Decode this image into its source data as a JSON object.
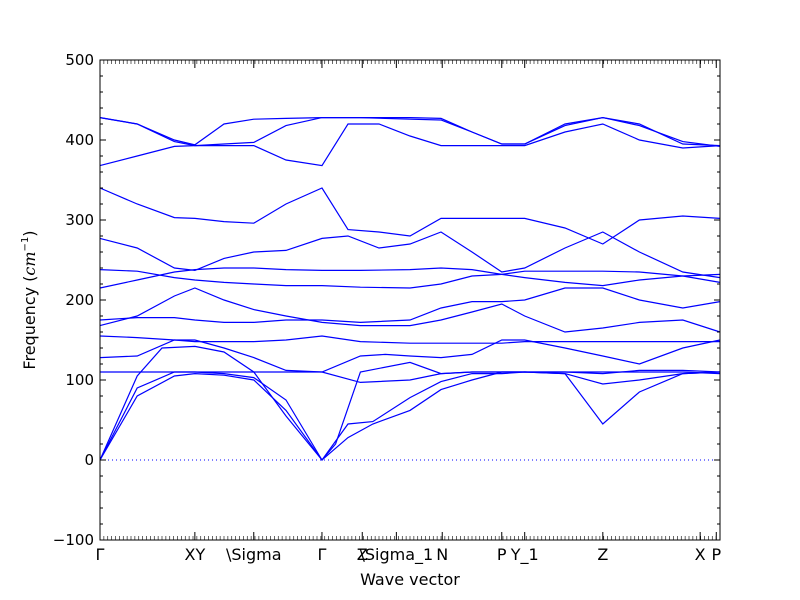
{
  "chart_data": {
    "type": "line",
    "xlabel": "Wave vector",
    "ylabel_text": "Frequency (",
    "ylabel_unit": "cm",
    "ylabel_exp": "−1",
    "ylabel_close": ")",
    "ylim": [
      -100,
      500
    ],
    "xlim": [
      0,
      1
    ],
    "yticks": [
      -100,
      0,
      100,
      200,
      300,
      400,
      500
    ],
    "ytick_labels": [
      "−100",
      "0",
      "100",
      "200",
      "300",
      "400",
      "500"
    ],
    "xticks": [
      {
        "pos": 0.0,
        "label": "Γ"
      },
      {
        "pos": 0.153,
        "label": "XY"
      },
      {
        "pos": 0.248,
        "label": "\\Sigma"
      },
      {
        "pos": 0.358,
        "label": "Γ"
      },
      {
        "pos": 0.423,
        "label": "Z"
      },
      {
        "pos": 0.478,
        "label": "\\Sigma_1"
      },
      {
        "pos": 0.552,
        "label": "N"
      },
      {
        "pos": 0.648,
        "label": "P"
      },
      {
        "pos": 0.685,
        "label": "Y_1"
      },
      {
        "pos": 0.811,
        "label": "Z"
      },
      {
        "pos": 0.968,
        "label": "X"
      },
      {
        "pos": 0.994,
        "label": "P"
      }
    ],
    "zero_line": "dotted",
    "line_color": "#0000ff",
    "series": [
      {
        "x": [
          0,
          0.06,
          0.12,
          0.153,
          0.2,
          0.248,
          0.3,
          0.358,
          0.4,
          0.44,
          0.5,
          0.55,
          0.6,
          0.648,
          0.685,
          0.75,
          0.811,
          0.87,
          0.94,
          1.0
        ],
        "y": [
          0,
          80,
          105,
          108,
          106,
          100,
          62,
          0,
          45,
          48,
          78,
          98,
          108,
          108,
          110,
          108,
          45,
          85,
          108,
          110
        ]
      },
      {
        "x": [
          0,
          0.06,
          0.12,
          0.153,
          0.2,
          0.248,
          0.3,
          0.358,
          0.4,
          0.44,
          0.5,
          0.55,
          0.6,
          0.648,
          0.685,
          0.75,
          0.811,
          0.87,
          0.94,
          1.0
        ],
        "y": [
          0,
          90,
          110,
          110,
          108,
          103,
          75,
          0,
          28,
          45,
          62,
          88,
          100,
          110,
          110,
          108,
          95,
          100,
          108,
          110
        ]
      },
      {
        "x": [
          0,
          0.06,
          0.1,
          0.153,
          0.2,
          0.248,
          0.3,
          0.358,
          0.38,
          0.42,
          0.5,
          0.55,
          0.6,
          0.648,
          0.685,
          0.75,
          0.811,
          0.87,
          0.94,
          1.0
        ],
        "y": [
          0,
          105,
          140,
          142,
          135,
          110,
          55,
          0,
          20,
          110,
          122,
          108,
          110,
          110,
          110,
          110,
          108,
          112,
          112,
          110
        ]
      },
      {
        "x": [
          0,
          0.06,
          0.153,
          0.248,
          0.3,
          0.358,
          0.42,
          0.5,
          0.55,
          0.6,
          0.648,
          0.685,
          0.75,
          0.811,
          0.87,
          0.94,
          1.0
        ],
        "y": [
          110,
          110,
          110,
          110,
          110,
          110,
          97,
          100,
          108,
          110,
          110,
          110,
          110,
          110,
          110,
          110,
          108
        ]
      },
      {
        "x": [
          0,
          0.06,
          0.12,
          0.153,
          0.2,
          0.248,
          0.3,
          0.358,
          0.42,
          0.46,
          0.5,
          0.55,
          0.6,
          0.648,
          0.685,
          0.75,
          0.811,
          0.87,
          0.94,
          1.0
        ],
        "y": [
          128,
          130,
          150,
          150,
          140,
          128,
          112,
          110,
          130,
          132,
          130,
          128,
          132,
          150,
          150,
          140,
          130,
          120,
          140,
          150
        ]
      },
      {
        "x": [
          0,
          0.06,
          0.12,
          0.153,
          0.2,
          0.248,
          0.3,
          0.358,
          0.42,
          0.5,
          0.55,
          0.6,
          0.648,
          0.685,
          0.75,
          0.811,
          0.87,
          0.94,
          1.0
        ],
        "y": [
          155,
          153,
          150,
          148,
          148,
          148,
          150,
          155,
          148,
          146,
          146,
          146,
          146,
          148,
          148,
          148,
          148,
          148,
          148
        ]
      },
      {
        "x": [
          0,
          0.06,
          0.12,
          0.153,
          0.2,
          0.248,
          0.3,
          0.358,
          0.42,
          0.5,
          0.55,
          0.6,
          0.648,
          0.685,
          0.75,
          0.811,
          0.87,
          0.94,
          1.0
        ],
        "y": [
          168,
          180,
          205,
          215,
          200,
          188,
          180,
          172,
          168,
          168,
          175,
          185,
          195,
          180,
          160,
          165,
          172,
          175,
          160
        ]
      },
      {
        "x": [
          0,
          0.06,
          0.12,
          0.153,
          0.2,
          0.248,
          0.3,
          0.358,
          0.42,
          0.5,
          0.55,
          0.6,
          0.648,
          0.685,
          0.75,
          0.811,
          0.87,
          0.94,
          1.0
        ],
        "y": [
          175,
          178,
          178,
          175,
          172,
          172,
          175,
          175,
          172,
          175,
          190,
          198,
          198,
          200,
          215,
          215,
          200,
          190,
          198
        ]
      },
      {
        "x": [
          0,
          0.06,
          0.12,
          0.153,
          0.2,
          0.248,
          0.3,
          0.358,
          0.42,
          0.5,
          0.55,
          0.6,
          0.648,
          0.685,
          0.75,
          0.811,
          0.87,
          0.94,
          1.0
        ],
        "y": [
          215,
          225,
          235,
          238,
          240,
          240,
          238,
          237,
          237,
          238,
          240,
          238,
          232,
          228,
          222,
          218,
          225,
          230,
          232
        ]
      },
      {
        "x": [
          0,
          0.06,
          0.12,
          0.153,
          0.2,
          0.248,
          0.3,
          0.358,
          0.42,
          0.5,
          0.55,
          0.6,
          0.648,
          0.685,
          0.75,
          0.811,
          0.87,
          0.94,
          1.0
        ],
        "y": [
          238,
          236,
          228,
          225,
          222,
          220,
          218,
          218,
          216,
          215,
          220,
          230,
          232,
          236,
          236,
          236,
          235,
          230,
          222
        ]
      },
      {
        "x": [
          0,
          0.06,
          0.12,
          0.153,
          0.2,
          0.248,
          0.3,
          0.358,
          0.4,
          0.45,
          0.5,
          0.55,
          0.6,
          0.648,
          0.685,
          0.75,
          0.811,
          0.87,
          0.94,
          1.0
        ],
        "y": [
          277,
          265,
          240,
          237,
          252,
          260,
          262,
          277,
          280,
          265,
          270,
          285,
          260,
          235,
          240,
          265,
          285,
          260,
          235,
          228
        ]
      },
      {
        "x": [
          0,
          0.06,
          0.12,
          0.153,
          0.2,
          0.248,
          0.3,
          0.358,
          0.4,
          0.45,
          0.5,
          0.55,
          0.6,
          0.648,
          0.685,
          0.75,
          0.811,
          0.87,
          0.94,
          1.0
        ],
        "y": [
          340,
          320,
          303,
          302,
          298,
          296,
          320,
          340,
          288,
          285,
          280,
          302,
          302,
          302,
          302,
          290,
          270,
          300,
          305,
          302
        ]
      },
      {
        "x": [
          0,
          0.06,
          0.12,
          0.153,
          0.2,
          0.248,
          0.3,
          0.358,
          0.4,
          0.45,
          0.5,
          0.55,
          0.6,
          0.648,
          0.685,
          0.75,
          0.811,
          0.87,
          0.94,
          1.0
        ],
        "y": [
          368,
          380,
          392,
          393,
          393,
          393,
          375,
          368,
          420,
          420,
          405,
          393,
          393,
          393,
          393,
          410,
          420,
          400,
          390,
          393
        ]
      },
      {
        "x": [
          0,
          0.06,
          0.12,
          0.153,
          0.2,
          0.248,
          0.3,
          0.358,
          0.4,
          0.45,
          0.5,
          0.55,
          0.6,
          0.648,
          0.685,
          0.75,
          0.811,
          0.87,
          0.94,
          1.0
        ],
        "y": [
          428,
          420,
          398,
          393,
          395,
          397,
          418,
          428,
          428,
          428,
          428,
          427,
          410,
          395,
          395,
          418,
          428,
          418,
          398,
          392
        ]
      },
      {
        "x": [
          0,
          0.06,
          0.12,
          0.153,
          0.2,
          0.248,
          0.3,
          0.358,
          0.42,
          0.5,
          0.55,
          0.6,
          0.648,
          0.685,
          0.75,
          0.811,
          0.87,
          0.94,
          1.0
        ],
        "y": [
          428,
          420,
          400,
          394,
          420,
          426,
          427,
          428,
          428,
          426,
          425,
          410,
          395,
          395,
          420,
          428,
          420,
          395,
          393
        ]
      }
    ]
  }
}
